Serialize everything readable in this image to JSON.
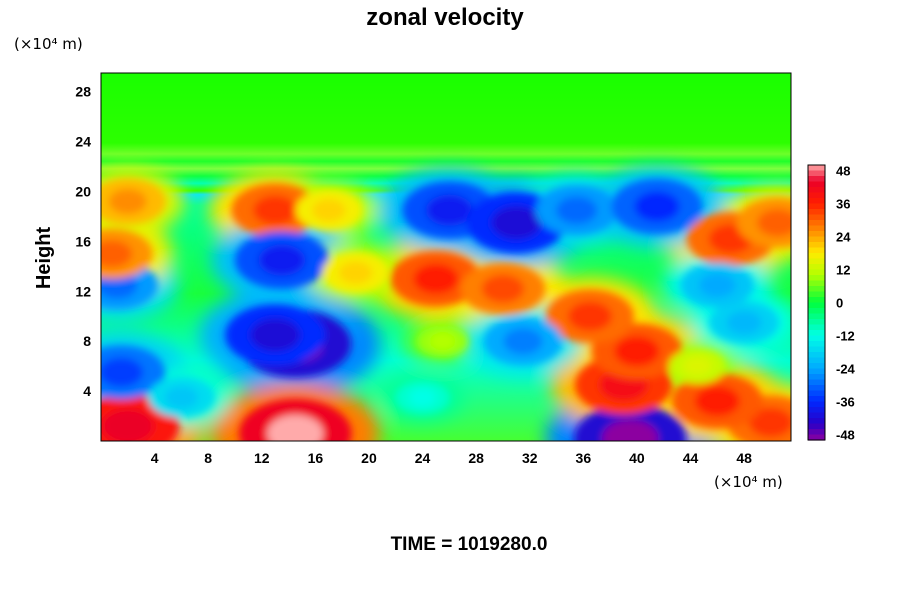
{
  "chart_data": {
    "type": "heatmap",
    "title": "zonal velocity",
    "ylabel": "Height",
    "y_unit": "(×10⁴ m)",
    "x_unit": "(×10⁴ m)",
    "xlim": [
      0,
      51.5
    ],
    "ylim": [
      0,
      29.5
    ],
    "x_ticks": [
      "4",
      "8",
      "12",
      "16",
      "20",
      "24",
      "28",
      "32",
      "36",
      "40",
      "44",
      "48"
    ],
    "y_ticks": [
      "4",
      "8",
      "12",
      "16",
      "20",
      "24",
      "28"
    ],
    "colorbar": {
      "range": [
        -50,
        50
      ],
      "ticks": [
        "48",
        "36",
        "24",
        "12",
        "0",
        "-12",
        "-24",
        "-36",
        "-48"
      ]
    },
    "features": [
      {
        "x": 14.5,
        "y": 7.8,
        "value": -50
      },
      {
        "x": 13.0,
        "y": 8.5,
        "value": -42
      },
      {
        "x": 39.5,
        "y": 0.2,
        "value": -50
      },
      {
        "x": 14.5,
        "y": 0.6,
        "value": 50
      },
      {
        "x": 2.0,
        "y": 1.2,
        "value": 44
      },
      {
        "x": 39.0,
        "y": 4.5,
        "value": 40
      },
      {
        "x": 40.0,
        "y": 7.2,
        "value": 36
      },
      {
        "x": 50.0,
        "y": 1.5,
        "value": 34
      },
      {
        "x": 46.0,
        "y": 3.2,
        "value": 36
      },
      {
        "x": 25.0,
        "y": 13.0,
        "value": 36
      },
      {
        "x": 30.0,
        "y": 12.2,
        "value": 32
      },
      {
        "x": 13.0,
        "y": 18.5,
        "value": 34
      },
      {
        "x": 47.0,
        "y": 16.2,
        "value": 34
      },
      {
        "x": 50.5,
        "y": 17.5,
        "value": 30
      },
      {
        "x": 36.5,
        "y": 10.0,
        "value": 34
      },
      {
        "x": 25.5,
        "y": 8.0,
        "value": 10
      },
      {
        "x": 24.0,
        "y": 3.5,
        "value": -12
      },
      {
        "x": 26.0,
        "y": 18.5,
        "value": -38
      },
      {
        "x": 31.0,
        "y": 17.5,
        "value": -42
      },
      {
        "x": 35.5,
        "y": 18.5,
        "value": -30
      },
      {
        "x": 41.5,
        "y": 18.8,
        "value": -36
      },
      {
        "x": 1.2,
        "y": 12.5,
        "value": -30
      },
      {
        "x": 1.5,
        "y": 5.5,
        "value": -34
      },
      {
        "x": 0.8,
        "y": 15.0,
        "value": 30
      },
      {
        "x": 17.0,
        "y": 18.5,
        "value": 20
      },
      {
        "x": 13.5,
        "y": 14.5,
        "value": -38
      },
      {
        "x": 6.0,
        "y": 3.5,
        "value": -20
      },
      {
        "x": 48.0,
        "y": 9.5,
        "value": -22
      },
      {
        "x": 46.0,
        "y": 12.5,
        "value": -24
      },
      {
        "x": 31.5,
        "y": 8.0,
        "value": -28
      },
      {
        "x": 44.5,
        "y": 6.0,
        "value": 14
      },
      {
        "x": 19.0,
        "y": 13.5,
        "value": 20
      },
      {
        "x": 2.0,
        "y": 19.2,
        "value": 26
      }
    ]
  },
  "footer": {
    "time_label": "TIME = 1019280.0"
  }
}
